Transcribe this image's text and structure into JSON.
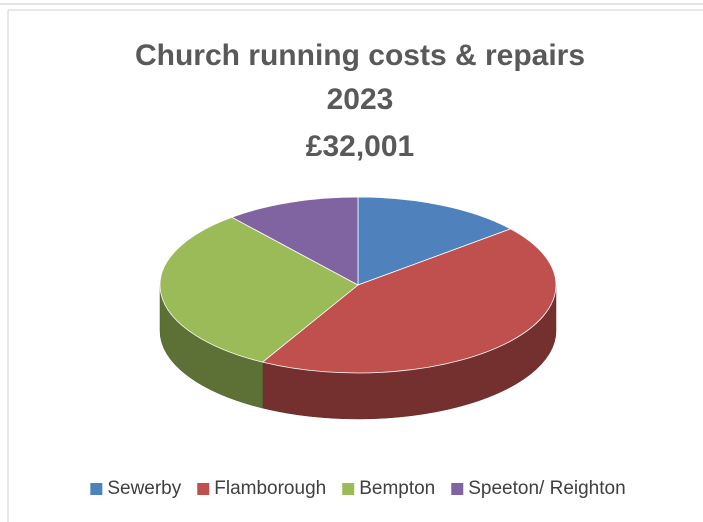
{
  "chart_data": {
    "type": "pie3d",
    "title_lines": [
      "Church running costs & repairs",
      "2023",
      "£32,001"
    ],
    "categories": [
      "Sewerby",
      "Flamborough",
      "Bempton",
      "Speeton/ Reighton"
    ],
    "values": [
      14,
      44,
      31,
      11
    ],
    "colors": [
      "#4f81bd",
      "#c0504d",
      "#9bbb59",
      "#8064a2"
    ],
    "legend": "bottom"
  }
}
